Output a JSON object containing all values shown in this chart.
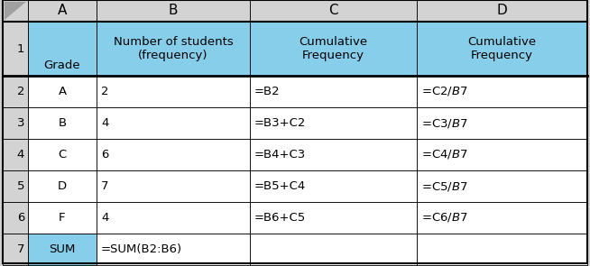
{
  "figsize": [
    6.54,
    2.95
  ],
  "dpi": 100,
  "bg_color": "#d3d3d3",
  "white_bg": "#ffffff",
  "blue_cell_bg": "#87CEEB",
  "col_header_bg": "#d3d3d3",
  "header_text_color": "#000000",
  "cell_text_color": "#000000",
  "grid_color": "#000000",
  "font_size": 9.5,
  "header_font_size": 11,
  "row_num_font_size": 9.5,
  "table_data": [
    [
      "",
      "Grade",
      "Number of students\n(frequency)",
      "Cumulative\nFrequency",
      "Cumulative\nFrequency"
    ],
    [
      "2",
      "A",
      "2",
      "=B2",
      "=C2/$B$7"
    ],
    [
      "3",
      "B",
      "4",
      "=B3+C2",
      "=C3/$B$7"
    ],
    [
      "4",
      "C",
      "6",
      "=B4+C3",
      "=C4/$B$7"
    ],
    [
      "5",
      "D",
      "7",
      "=B5+C4",
      "=C5/$B$7"
    ],
    [
      "6",
      "F",
      "4",
      "=B6+C5",
      "=C6/$B$7"
    ],
    [
      "7",
      "SUM",
      "=SUM(B2:B6)",
      "",
      ""
    ]
  ],
  "cell_colors": [
    [
      "gray",
      "gray",
      "gray",
      "gray",
      "gray"
    ],
    [
      "gray",
      "blue",
      "blue",
      "blue",
      "blue"
    ],
    [
      "gray",
      "white",
      "white",
      "white",
      "white"
    ],
    [
      "gray",
      "white",
      "white",
      "white",
      "white"
    ],
    [
      "gray",
      "white",
      "white",
      "white",
      "white"
    ],
    [
      "gray",
      "white",
      "white",
      "white",
      "white"
    ],
    [
      "gray",
      "white",
      "white",
      "white",
      "white"
    ],
    [
      "gray",
      "blue",
      "white",
      "white",
      "white"
    ]
  ]
}
